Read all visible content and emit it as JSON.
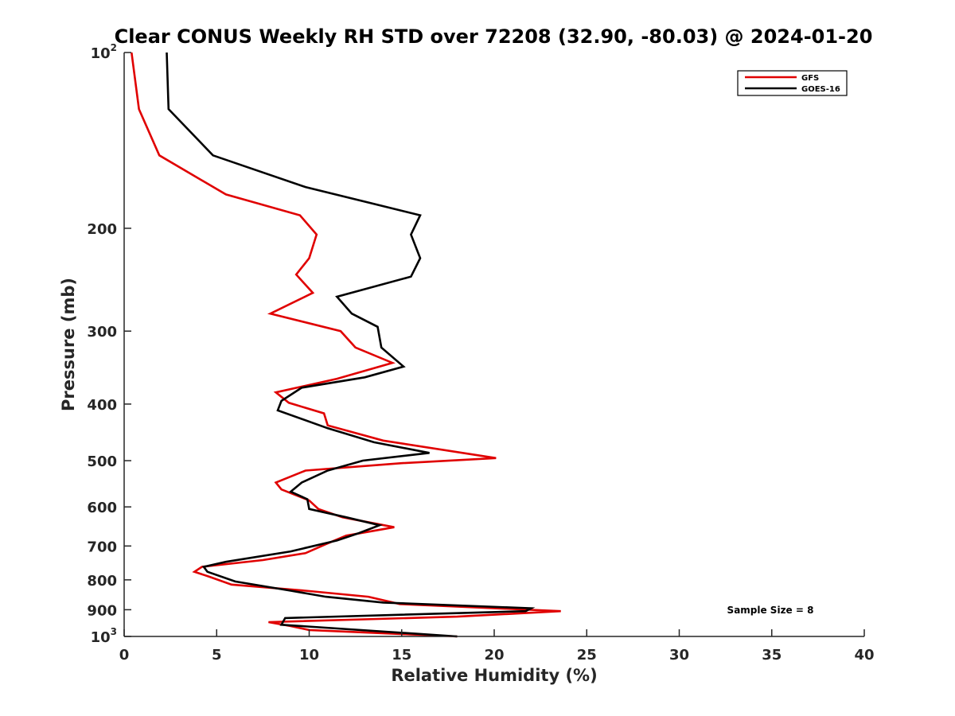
{
  "chart_data": {
    "type": "line",
    "title": "Clear CONUS Weekly RH STD over 72208 (32.90, -80.03) @ 2024-01-20",
    "xlabel": "Relative Humidity (%)",
    "ylabel": "Pressure (mb)",
    "xlim": [
      0,
      40
    ],
    "ylim": [
      100,
      1000
    ],
    "y_scale": "log",
    "y_reversed": true,
    "grid": false,
    "legend_position": "top-right",
    "x_ticks": [
      "0",
      "5",
      "10",
      "15",
      "20",
      "25",
      "30",
      "35",
      "40"
    ],
    "y_ticks": [
      {
        "value": 100,
        "base": "10",
        "exp": "2"
      },
      {
        "value": 200,
        "label": "200"
      },
      {
        "value": 300,
        "label": "300"
      },
      {
        "value": 400,
        "label": "400"
      },
      {
        "value": 500,
        "label": "500"
      },
      {
        "value": 600,
        "label": "600"
      },
      {
        "value": 700,
        "label": "700"
      },
      {
        "value": 800,
        "label": "800"
      },
      {
        "value": 900,
        "label": "900"
      },
      {
        "value": 1000,
        "base": "10",
        "exp": "3"
      }
    ],
    "annotation": "Sample Size = 8",
    "series": [
      {
        "name": "GFS",
        "color": "#e00000",
        "points": [
          [
            0.4,
            100
          ],
          [
            0.8,
            125
          ],
          [
            1.9,
            150
          ],
          [
            5.5,
            175
          ],
          [
            9.5,
            190
          ],
          [
            10.4,
            205
          ],
          [
            10.0,
            225
          ],
          [
            9.3,
            240
          ],
          [
            10.2,
            258
          ],
          [
            7.9,
            280
          ],
          [
            11.7,
            300
          ],
          [
            12.5,
            320
          ],
          [
            14.5,
            340
          ],
          [
            11.5,
            362
          ],
          [
            8.2,
            382
          ],
          [
            8.9,
            398
          ],
          [
            10.8,
            415
          ],
          [
            11.0,
            435
          ],
          [
            14.0,
            462
          ],
          [
            20.1,
            495
          ],
          [
            15.0,
            505
          ],
          [
            9.8,
            520
          ],
          [
            8.2,
            545
          ],
          [
            8.5,
            560
          ],
          [
            10.0,
            585
          ],
          [
            10.5,
            605
          ],
          [
            11.8,
            625
          ],
          [
            14.6,
            650
          ],
          [
            12.0,
            672
          ],
          [
            10.9,
            695
          ],
          [
            9.8,
            720
          ],
          [
            7.5,
            740
          ],
          [
            4.2,
            760
          ],
          [
            3.8,
            775
          ],
          [
            4.6,
            790
          ],
          [
            5.8,
            815
          ],
          [
            9.8,
            835
          ],
          [
            13.2,
            855
          ],
          [
            14.9,
            880
          ],
          [
            23.6,
            905
          ],
          [
            18.0,
            925
          ],
          [
            7.8,
            945
          ],
          [
            9.0,
            960
          ],
          [
            10.0,
            975
          ],
          [
            18.0,
            1000
          ]
        ]
      },
      {
        "name": "GOES-16",
        "color": "#000000",
        "points": [
          [
            2.3,
            100
          ],
          [
            2.4,
            125
          ],
          [
            4.8,
            150
          ],
          [
            9.8,
            170
          ],
          [
            16.0,
            190
          ],
          [
            15.5,
            205
          ],
          [
            16.0,
            225
          ],
          [
            15.5,
            242
          ],
          [
            11.5,
            262
          ],
          [
            12.3,
            280
          ],
          [
            13.7,
            295
          ],
          [
            13.9,
            320
          ],
          [
            15.1,
            345
          ],
          [
            13.0,
            360
          ],
          [
            9.6,
            375
          ],
          [
            8.5,
            395
          ],
          [
            8.3,
            410
          ],
          [
            11.0,
            440
          ],
          [
            13.5,
            465
          ],
          [
            16.5,
            485
          ],
          [
            12.9,
            500
          ],
          [
            11.0,
            520
          ],
          [
            9.6,
            545
          ],
          [
            9.0,
            565
          ],
          [
            9.9,
            582
          ],
          [
            10.0,
            605
          ],
          [
            12.0,
            625
          ],
          [
            13.8,
            645
          ],
          [
            12.7,
            665
          ],
          [
            11.5,
            685
          ],
          [
            9.0,
            715
          ],
          [
            5.5,
            745
          ],
          [
            4.3,
            760
          ],
          [
            4.5,
            775
          ],
          [
            6.0,
            805
          ],
          [
            9.0,
            835
          ],
          [
            10.9,
            855
          ],
          [
            14.0,
            875
          ],
          [
            22.0,
            895
          ],
          [
            21.7,
            905
          ],
          [
            8.7,
            930
          ],
          [
            8.5,
            955
          ],
          [
            18.0,
            1000
          ]
        ]
      }
    ]
  }
}
